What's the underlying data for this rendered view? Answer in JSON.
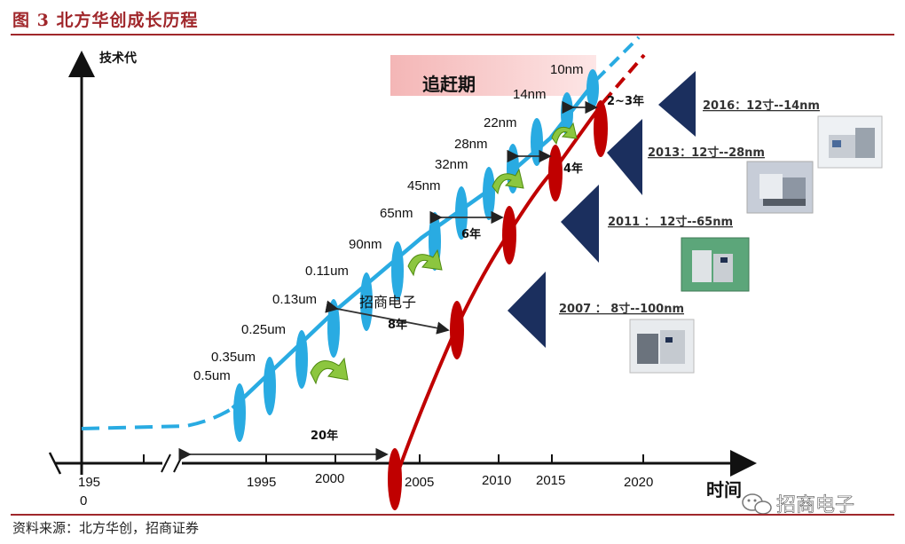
{
  "title": "图 3  北方华创成长历程",
  "source": "资料来源：北方华创，招商证券",
  "axis": {
    "y_label": "技术代",
    "x_label": "时间"
  },
  "catch_up_label": "追赶期",
  "center_watermark": "招商电子",
  "watermark": {
    "icon": "wechat-icon",
    "text": "招商电子"
  },
  "years": [
    {
      "text": "195\n0",
      "line1": "195",
      "line2": "0"
    },
    {
      "line1": "1995"
    },
    {
      "line1": "2000"
    },
    {
      "line1": "2005"
    },
    {
      "line1": "2010"
    },
    {
      "line1": "2015"
    },
    {
      "line1": "2020"
    }
  ],
  "nodes": [
    "0.5um",
    "0.35um",
    "0.25um",
    "0.13um",
    "0.11um",
    "90nm",
    "65nm",
    "45nm",
    "32nm",
    "28nm",
    "22nm",
    "14nm",
    "10nm"
  ],
  "durations": [
    "20年",
    "8年",
    "6年",
    "4年",
    "2~3年"
  ],
  "milestones": [
    {
      "label": "2016：12寸--14nm"
    },
    {
      "label": "2013：12寸--28nm"
    },
    {
      "label": "2011 ： 12寸--65nm"
    },
    {
      "label": "2007 ： 8寸--100nm"
    }
  ],
  "colors": {
    "global_line": "#29abe2",
    "company_line": "#c00000",
    "title": "#a0272b",
    "triangle": "#1b2f5e",
    "catchup_bg": "#f6c6c6"
  }
}
